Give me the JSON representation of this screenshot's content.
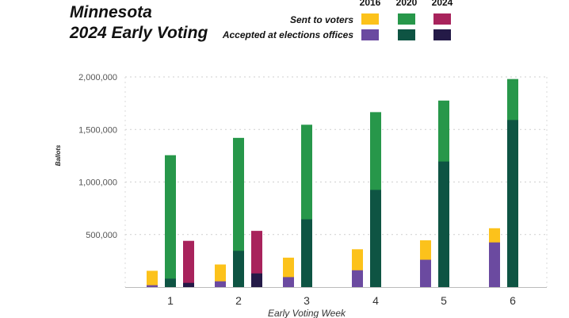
{
  "chart_data": {
    "type": "bar",
    "title_lines": [
      "Minnesota",
      "2024 Early Voting"
    ],
    "xlabel": "Early Voting Week",
    "ylabel": "Ballots",
    "ylim": [
      0,
      2000000
    ],
    "yticks": [
      {
        "value": 500000,
        "label": "500,000"
      },
      {
        "value": 1000000,
        "label": "1,000,000"
      },
      {
        "value": 1500000,
        "label": "1,500,000"
      },
      {
        "value": 2000000,
        "label": "2,000,000"
      }
    ],
    "categories": [
      "1",
      "2",
      "3",
      "4",
      "5",
      "6"
    ],
    "legend": {
      "years": [
        "2016",
        "2020",
        "2024"
      ],
      "rows": [
        {
          "label": "Sent to voters",
          "colors": [
            "#FCC21B",
            "#27974A",
            "#A8235C"
          ]
        },
        {
          "label": "Accepted at elections offices",
          "colors": [
            "#6B4AA0",
            "#0E5443",
            "#241A47"
          ]
        }
      ]
    },
    "series": [
      {
        "name": "2016",
        "sent_color": "#FCC21B",
        "accepted_color": "#6B4AA0",
        "sent": [
          155000,
          215000,
          280000,
          360000,
          445000,
          560000
        ],
        "accepted": [
          18000,
          55000,
          95000,
          160000,
          260000,
          425000
        ]
      },
      {
        "name": "2020",
        "sent_color": "#27974A",
        "accepted_color": "#0E5443",
        "sent": [
          1255000,
          1420000,
          1545000,
          1665000,
          1775000,
          1980000
        ],
        "accepted": [
          80000,
          345000,
          645000,
          925000,
          1195000,
          1590000
        ]
      },
      {
        "name": "2024",
        "sent_color": "#A8235C",
        "accepted_color": "#241A47",
        "sent": [
          440000,
          535000,
          null,
          null,
          null,
          null
        ],
        "accepted": [
          40000,
          130000,
          null,
          null,
          null,
          null
        ]
      }
    ]
  }
}
